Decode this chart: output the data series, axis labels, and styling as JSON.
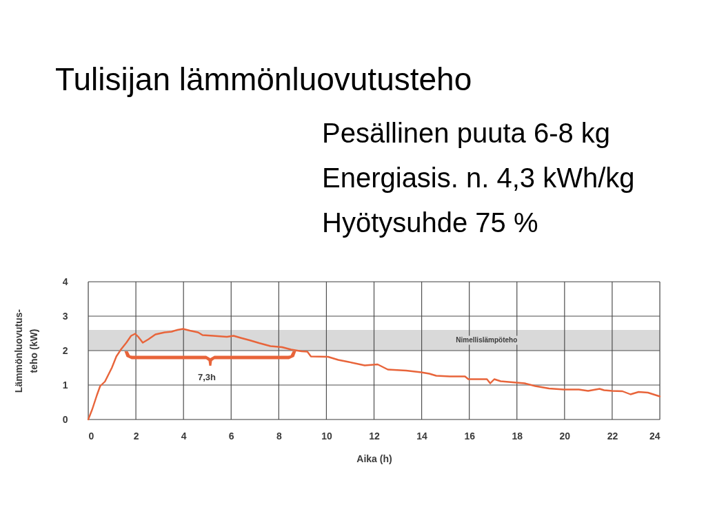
{
  "chart_data": {
    "type": "line",
    "title": "Tulisijan lämmönluovutusteho",
    "subtitle": "Pesällinen puuta 6-8 kg\nEnergiasis. n. 4,3 kWh/kg\nHyötysuhde 75 %",
    "xlabel": "Aika (h)",
    "ylabel": "Lämmönluovutus-\nteho (kW)",
    "xlim": [
      0,
      24
    ],
    "ylim": [
      0,
      4
    ],
    "xticks": [
      0,
      2,
      4,
      6,
      8,
      10,
      12,
      14,
      16,
      18,
      20,
      22,
      24
    ],
    "yticks": [
      0,
      1,
      2,
      3,
      4
    ],
    "grid": true,
    "series": [
      {
        "color": "#e8643a",
        "x": [
          0,
          0.17,
          0.36,
          0.5,
          0.7,
          0.99,
          1.18,
          1.37,
          1.6,
          1.8,
          1.97,
          2.1,
          2.29,
          2.53,
          2.82,
          3.21,
          3.5,
          3.74,
          3.98,
          4.27,
          4.61,
          4.8,
          5.24,
          5.82,
          6.1,
          6.4,
          6.78,
          7.17,
          7.65,
          8.14,
          8.52,
          8.96,
          9.2,
          9.35,
          10.07,
          10.5,
          10.94,
          11.61,
          12.15,
          12.58,
          13.35,
          13.98,
          14.32,
          14.61,
          15.19,
          15.82,
          15.96,
          16.74,
          16.88,
          17.05,
          17.32,
          17.99,
          18.33,
          18.77,
          19.35,
          19.97,
          20.6,
          20.99,
          21.47,
          21.66,
          22.0,
          22.43,
          22.77,
          23.11,
          23.5,
          24
        ],
        "values": [
          0,
          0.3,
          0.7,
          0.97,
          1.1,
          1.5,
          1.83,
          2.03,
          2.23,
          2.43,
          2.49,
          2.4,
          2.23,
          2.33,
          2.47,
          2.53,
          2.55,
          2.6,
          2.63,
          2.58,
          2.53,
          2.45,
          2.43,
          2.4,
          2.43,
          2.37,
          2.3,
          2.22,
          2.13,
          2.1,
          2.03,
          1.98,
          1.97,
          1.83,
          1.82,
          1.73,
          1.67,
          1.57,
          1.6,
          1.45,
          1.42,
          1.37,
          1.33,
          1.27,
          1.25,
          1.25,
          1.17,
          1.17,
          1.05,
          1.17,
          1.11,
          1.07,
          1.05,
          0.97,
          0.9,
          0.87,
          0.87,
          0.83,
          0.89,
          0.85,
          0.83,
          0.82,
          0.73,
          0.8,
          0.78,
          0.67
        ]
      }
    ],
    "bands": [
      {
        "axis": "y",
        "from": 2,
        "to": 2.6,
        "label": "Nimellislämpöteho",
        "color": "#d9d9d9"
      }
    ],
    "annotations": [
      "7,3h"
    ]
  }
}
